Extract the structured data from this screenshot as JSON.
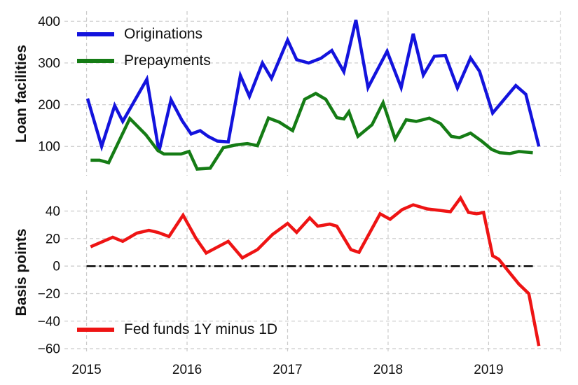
{
  "chart_data": {
    "type": "line",
    "title": "",
    "grid": true,
    "background": "#ffffff",
    "text_color": "#111111",
    "grid_color": "#cacaca",
    "x_axis": {
      "tick_labels": [
        "2015",
        "2016",
        "2017",
        "2018",
        "2019"
      ],
      "tick_values": [
        2015,
        2016,
        2017,
        2018,
        2019
      ],
      "xlim": [
        2014.78,
        2019.715
      ],
      "right_edge_gridline": true
    },
    "panels": [
      {
        "ylabel": "Loan facilities",
        "ytick_labels": [
          "400",
          "300",
          "200",
          "100"
        ],
        "ytick_values": [
          400,
          300,
          200,
          100
        ],
        "ylim": [
          424,
          30
        ],
        "legend_position": "upper left",
        "legend": [
          {
            "label": "Originations",
            "color": "#1313dd"
          },
          {
            "label": "Prepayments",
            "color": "#157c15"
          }
        ],
        "series": [
          {
            "name": "Originations",
            "color": "#1313dd",
            "points": [
              [
                2015.01,
                215
              ],
              [
                2015.15,
                100
              ],
              [
                2015.28,
                198
              ],
              [
                2015.36,
                160
              ],
              [
                2015.6,
                261
              ],
              [
                2015.72,
                88
              ],
              [
                2015.84,
                212
              ],
              [
                2015.95,
                162
              ],
              [
                2016.04,
                130
              ],
              [
                2016.13,
                138
              ],
              [
                2016.21,
                124
              ],
              [
                2016.3,
                113
              ],
              [
                2016.41,
                111
              ],
              [
                2016.53,
                270
              ],
              [
                2016.62,
                220
              ],
              [
                2016.75,
                300
              ],
              [
                2016.84,
                263
              ],
              [
                2017.0,
                355
              ],
              [
                2017.09,
                308
              ],
              [
                2017.21,
                300
              ],
              [
                2017.33,
                311
              ],
              [
                2017.44,
                330
              ],
              [
                2017.56,
                279
              ],
              [
                2017.68,
                403
              ],
              [
                2017.8,
                241
              ],
              [
                2017.99,
                328
              ],
              [
                2018.13,
                241
              ],
              [
                2018.25,
                370
              ],
              [
                2018.35,
                271
              ],
              [
                2018.46,
                316
              ],
              [
                2018.57,
                318
              ],
              [
                2018.69,
                240
              ],
              [
                2018.82,
                312
              ],
              [
                2018.91,
                280
              ],
              [
                2019.04,
                180
              ],
              [
                2019.27,
                246
              ],
              [
                2019.37,
                225
              ],
              [
                2019.5,
                100
              ]
            ]
          },
          {
            "name": "Prepayments",
            "color": "#157c15",
            "points": [
              [
                2015.04,
                67
              ],
              [
                2015.13,
                67
              ],
              [
                2015.22,
                61
              ],
              [
                2015.43,
                167
              ],
              [
                2015.59,
                128
              ],
              [
                2015.71,
                90
              ],
              [
                2015.77,
                82
              ],
              [
                2015.94,
                82
              ],
              [
                2016.02,
                88
              ],
              [
                2016.1,
                46
              ],
              [
                2016.23,
                48
              ],
              [
                2016.36,
                97
              ],
              [
                2016.49,
                104
              ],
              [
                2016.6,
                107
              ],
              [
                2016.7,
                102
              ],
              [
                2016.81,
                168
              ],
              [
                2016.92,
                158
              ],
              [
                2017.05,
                138
              ],
              [
                2017.17,
                213
              ],
              [
                2017.28,
                227
              ],
              [
                2017.38,
                213
              ],
              [
                2017.49,
                169
              ],
              [
                2017.56,
                166
              ],
              [
                2017.61,
                183
              ],
              [
                2017.7,
                124
              ],
              [
                2017.84,
                152
              ],
              [
                2017.95,
                205
              ],
              [
                2018.07,
                118
              ],
              [
                2018.18,
                164
              ],
              [
                2018.28,
                160
              ],
              [
                2018.41,
                168
              ],
              [
                2018.52,
                155
              ],
              [
                2018.63,
                124
              ],
              [
                2018.71,
                121
              ],
              [
                2018.82,
                132
              ],
              [
                2018.93,
                113
              ],
              [
                2019.03,
                93
              ],
              [
                2019.11,
                85
              ],
              [
                2019.21,
                83
              ],
              [
                2019.3,
                88
              ],
              [
                2019.44,
                85
              ]
            ]
          }
        ]
      },
      {
        "ylabel": "Basis points",
        "ytick_labels": [
          "40",
          "20",
          "0",
          "−20",
          "−40",
          "−60"
        ],
        "ytick_values": [
          40,
          20,
          0,
          -20,
          -40,
          -60
        ],
        "ylim": [
          55,
          -64
        ],
        "legend_position": "lower left",
        "legend": [
          {
            "label": "Fed funds 1Y minus 1D",
            "color": "#ee1414"
          }
        ],
        "zero_line": {
          "y": 0,
          "x_start": 2015.0,
          "x_end": 2019.47,
          "style": "dashdot",
          "color": "#000000"
        },
        "series": [
          {
            "name": "Fed funds 1Y minus 1D",
            "color": "#ee1414",
            "points": [
              [
                2015.04,
                14
              ],
              [
                2015.26,
                21
              ],
              [
                2015.36,
                18
              ],
              [
                2015.5,
                24
              ],
              [
                2015.62,
                26
              ],
              [
                2015.71,
                24.5
              ],
              [
                2015.82,
                21.5
              ],
              [
                2015.96,
                37
              ],
              [
                2016.09,
                20
              ],
              [
                2016.19,
                9.5
              ],
              [
                2016.41,
                18
              ],
              [
                2016.55,
                6
              ],
              [
                2016.7,
                12
              ],
              [
                2016.85,
                23
              ],
              [
                2017.0,
                31
              ],
              [
                2017.09,
                24.5
              ],
              [
                2017.22,
                35
              ],
              [
                2017.3,
                29
              ],
              [
                2017.42,
                30.5
              ],
              [
                2017.49,
                29
              ],
              [
                2017.63,
                12
              ],
              [
                2017.71,
                10
              ],
              [
                2017.92,
                38
              ],
              [
                2018.02,
                34
              ],
              [
                2018.14,
                41
              ],
              [
                2018.25,
                44.5
              ],
              [
                2018.39,
                41.5
              ],
              [
                2018.51,
                40.5
              ],
              [
                2018.62,
                39.5
              ],
              [
                2018.72,
                49.5
              ],
              [
                2018.8,
                39
              ],
              [
                2018.88,
                38
              ],
              [
                2018.95,
                39
              ],
              [
                2019.04,
                7.5
              ],
              [
                2019.1,
                5
              ],
              [
                2019.3,
                -13
              ],
              [
                2019.4,
                -20
              ],
              [
                2019.5,
                -58
              ]
            ]
          }
        ]
      }
    ]
  }
}
